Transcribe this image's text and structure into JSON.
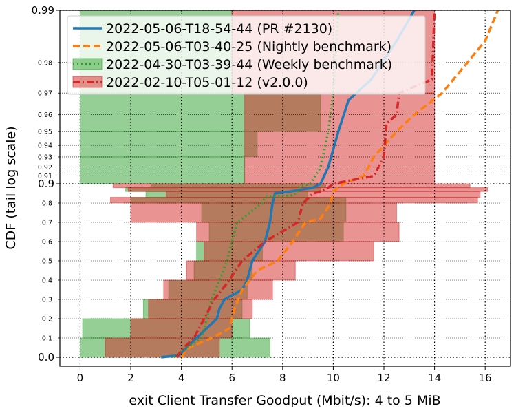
{
  "chart_data": {
    "type": "line",
    "xlabel": "exit Client Transfer Goodput (Mbit/s): 4 to 5 MiB",
    "ylabel": "CDF (tail log scale)",
    "xlim": [
      -0.8,
      17
    ],
    "x_ticks": [
      "0",
      "2",
      "4",
      "6",
      "8",
      "10",
      "12",
      "14",
      "16"
    ],
    "x_tick_values": [
      0,
      2,
      4,
      6,
      8,
      10,
      12,
      14,
      16
    ],
    "y_scale": "linear 0 to 0.9, log tail 0.9 to 0.99",
    "y_ticks_major": [
      "0.0",
      "0.9",
      "0.99"
    ],
    "y_tick_major_values": [
      0.0,
      0.9,
      0.99
    ],
    "y_ticks_minor": [
      "0.1",
      "0.2",
      "0.3",
      "0.4",
      "0.5",
      "0.6",
      "0.7",
      "0.8",
      "0.91",
      "0.92",
      "0.93",
      "0.94",
      "0.95",
      "0.96",
      "0.97",
      "0.98"
    ],
    "y_tick_minor_values": [
      0.1,
      0.2,
      0.3,
      0.4,
      0.5,
      0.6,
      0.7,
      0.8,
      0.91,
      0.92,
      0.93,
      0.94,
      0.95,
      0.96,
      0.97,
      0.98
    ],
    "grid": true,
    "legend_position": "top-left",
    "series": [
      {
        "name": "2022-05-06-T18-54-44 (PR #2130)",
        "color": "#1f77b4",
        "style": "solid",
        "points": [
          [
            3.2,
            0.0
          ],
          [
            3.9,
            0.01
          ],
          [
            4.6,
            0.1
          ],
          [
            5.4,
            0.2
          ],
          [
            5.5,
            0.25
          ],
          [
            5.7,
            0.3
          ],
          [
            6.4,
            0.35
          ],
          [
            6.6,
            0.4
          ],
          [
            6.8,
            0.5
          ],
          [
            7.3,
            0.6
          ],
          [
            7.5,
            0.7
          ],
          [
            7.6,
            0.8
          ],
          [
            7.7,
            0.85
          ],
          [
            8.3,
            0.86
          ],
          [
            9.2,
            0.88
          ],
          [
            9.5,
            0.9
          ],
          [
            9.8,
            0.92
          ],
          [
            10.2,
            0.95
          ],
          [
            10.6,
            0.967
          ],
          [
            11.5,
            0.975
          ],
          [
            12.5,
            0.985
          ],
          [
            13.2,
            0.99
          ]
        ]
      },
      {
        "name": "2022-05-06-T03-40-25 (Nightly benchmark)",
        "color": "#ff7f0e",
        "style": "dashed",
        "points": [
          [
            4.0,
            0.0
          ],
          [
            4.3,
            0.05
          ],
          [
            5.2,
            0.1
          ],
          [
            5.9,
            0.15
          ],
          [
            6.1,
            0.25
          ],
          [
            6.4,
            0.35
          ],
          [
            7.0,
            0.45
          ],
          [
            7.8,
            0.5
          ],
          [
            8.1,
            0.55
          ],
          [
            8.4,
            0.6
          ],
          [
            8.9,
            0.7
          ],
          [
            9.5,
            0.72
          ],
          [
            9.9,
            0.8
          ],
          [
            10.0,
            0.86
          ],
          [
            10.4,
            0.9
          ],
          [
            11.2,
            0.91
          ],
          [
            11.6,
            0.93
          ],
          [
            12.5,
            0.95
          ],
          [
            13.2,
            0.96
          ],
          [
            14.3,
            0.97
          ],
          [
            15.3,
            0.98
          ],
          [
            16.0,
            0.985
          ],
          [
            16.5,
            0.99
          ]
        ]
      },
      {
        "name": "2022-04-30-T03-39-44 (Weekly benchmark)",
        "color": "#2ca02c",
        "style": "dotted",
        "points": [
          [
            3.7,
            0.0
          ],
          [
            4.2,
            0.05
          ],
          [
            4.8,
            0.1
          ],
          [
            5.0,
            0.2
          ],
          [
            5.2,
            0.3
          ],
          [
            5.8,
            0.5
          ],
          [
            6.2,
            0.7
          ],
          [
            7.2,
            0.8
          ],
          [
            7.3,
            0.83
          ],
          [
            8.4,
            0.84
          ],
          [
            8.6,
            0.86
          ],
          [
            8.7,
            0.89
          ],
          [
            9.1,
            0.9
          ],
          [
            9.5,
            0.92
          ],
          [
            9.8,
            0.95
          ],
          [
            10.0,
            0.97
          ],
          [
            10.2,
            0.99
          ]
        ]
      },
      {
        "name": "2022-02-10-T05-01-12 (v2.0.0)",
        "color": "#d62728",
        "style": "dashdot",
        "points": [
          [
            3.8,
            0.0
          ],
          [
            4.1,
            0.05
          ],
          [
            4.5,
            0.1
          ],
          [
            4.9,
            0.2
          ],
          [
            5.3,
            0.3
          ],
          [
            5.9,
            0.4
          ],
          [
            6.4,
            0.5
          ],
          [
            7.3,
            0.6
          ],
          [
            8.6,
            0.7
          ],
          [
            8.8,
            0.8
          ],
          [
            9.2,
            0.85
          ],
          [
            9.5,
            0.86
          ],
          [
            9.8,
            0.88
          ],
          [
            10.0,
            0.9
          ],
          [
            11.6,
            0.91
          ],
          [
            12.0,
            0.93
          ],
          [
            12.1,
            0.955
          ],
          [
            12.5,
            0.96
          ],
          [
            12.6,
            0.97
          ],
          [
            13.9,
            0.975
          ],
          [
            14.0,
            0.99
          ]
        ]
      }
    ],
    "bands": [
      {
        "series": "2022-04-30-T03-39-44 (Weekly benchmark)",
        "color": "#2ca02c",
        "rows": [
          [
            0.0,
            0.0,
            0.1,
            7.5
          ],
          [
            0.1,
            0.1,
            0.2,
            6.7
          ],
          [
            0.2,
            2.5,
            0.3,
            6.4
          ],
          [
            0.3,
            3.5,
            0.4,
            6.6
          ],
          [
            0.4,
            4.5,
            0.5,
            6.8
          ],
          [
            0.5,
            4.6,
            0.6,
            7.2
          ],
          [
            0.6,
            5.1,
            0.7,
            10.4
          ],
          [
            0.7,
            4.8,
            0.8,
            10.5
          ],
          [
            0.8,
            2.0,
            0.83,
            10.5
          ],
          [
            0.83,
            2.6,
            0.86,
            9.0
          ],
          [
            0.86,
            1.8,
            0.88,
            9.5
          ],
          [
            0.88,
            2.8,
            0.9,
            9.7
          ],
          [
            0.9,
            0.0,
            0.93,
            6.5
          ],
          [
            0.93,
            0.0,
            0.95,
            7.0
          ],
          [
            0.95,
            0.0,
            0.97,
            9.5
          ],
          [
            0.97,
            0.0,
            0.99,
            6.0
          ]
        ]
      },
      {
        "series": "2022-02-10-T05-01-12 (v2.0.0)",
        "color": "#d62728",
        "rows": [
          [
            0.0,
            1.0,
            0.1,
            5.5
          ],
          [
            0.1,
            2.0,
            0.2,
            6.0
          ],
          [
            0.2,
            2.7,
            0.3,
            6.8
          ],
          [
            0.3,
            3.3,
            0.4,
            7.6
          ],
          [
            0.4,
            4.2,
            0.5,
            8.5
          ],
          [
            0.5,
            4.9,
            0.6,
            11.6
          ],
          [
            0.6,
            4.6,
            0.7,
            12.6
          ],
          [
            0.7,
            2.0,
            0.8,
            12.5
          ],
          [
            0.8,
            1.2,
            0.83,
            15.7
          ],
          [
            0.83,
            3.4,
            0.86,
            15.8
          ],
          [
            0.86,
            1.9,
            0.88,
            16.1
          ],
          [
            0.88,
            1.3,
            0.9,
            15.4
          ],
          [
            0.9,
            6.5,
            0.97,
            14.0
          ],
          [
            0.97,
            6.0,
            0.99,
            14.0
          ]
        ]
      }
    ]
  }
}
